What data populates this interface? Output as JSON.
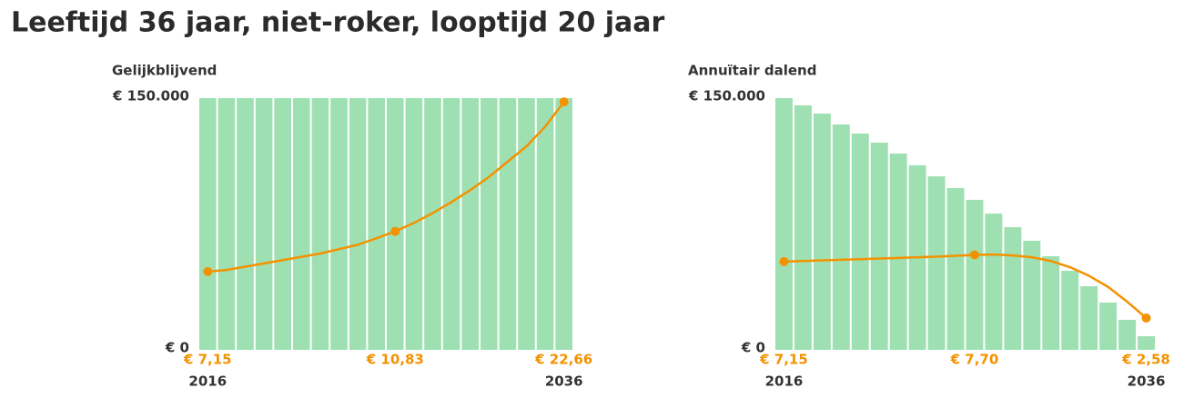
{
  "title": "Leeftijd 36 jaar, niet-roker, looptijd 20 jaar",
  "chart_data": [
    {
      "type": "bar",
      "subtitle": "Gelijkblijvend",
      "categories": [
        "2016",
        null,
        null,
        null,
        null,
        null,
        null,
        null,
        null,
        null,
        null,
        null,
        null,
        null,
        null,
        null,
        null,
        null,
        null,
        "2036"
      ],
      "series": [
        {
          "color": "#9fe0b2",
          "values": [
            150000,
            150000,
            150000,
            150000,
            150000,
            150000,
            150000,
            150000,
            150000,
            150000,
            150000,
            150000,
            150000,
            150000,
            150000,
            150000,
            150000,
            150000,
            150000,
            150000
          ]
        },
        {
          "type": "line",
          "axis": "y2",
          "color": "#f39200",
          "values": [
            7.15,
            7.3,
            7.6,
            7.9,
            8.2,
            8.5,
            8.8,
            9.2,
            9.6,
            10.2,
            10.83,
            11.6,
            12.5,
            13.5,
            14.6,
            15.8,
            17.2,
            18.6,
            20.4,
            22.66
          ],
          "value_labels": [
            "€ 7,15",
            null,
            null,
            null,
            null,
            null,
            null,
            null,
            null,
            null,
            "€ 10,83",
            null,
            null,
            null,
            null,
            null,
            null,
            null,
            null,
            "€ 22,66"
          ]
        }
      ],
      "ylim": [
        0,
        150000
      ],
      "yticks": [
        {
          "value": 0,
          "label": "€ 0"
        },
        {
          "value": 150000,
          "label": "€ 150.000"
        }
      ],
      "y2lim": [
        0,
        23
      ],
      "grid": false
    },
    {
      "type": "bar",
      "subtitle": "Annuïtair dalend",
      "categories": [
        "2016",
        null,
        null,
        null,
        null,
        null,
        null,
        null,
        null,
        null,
        null,
        null,
        null,
        null,
        null,
        null,
        null,
        null,
        null,
        "2036"
      ],
      "series": [
        {
          "color": "#9fe0b2",
          "values": [
            150000,
            145700,
            140800,
            134300,
            128900,
            123500,
            117000,
            110000,
            103400,
            96400,
            89400,
            81200,
            73100,
            65000,
            55800,
            47100,
            37900,
            28200,
            17900,
            8100
          ]
        },
        {
          "type": "line",
          "axis": "y2",
          "color": "#f39200",
          "values": [
            7.15,
            7.2,
            7.25,
            7.3,
            7.35,
            7.4,
            7.45,
            7.5,
            7.55,
            7.62,
            7.7,
            7.72,
            7.65,
            7.5,
            7.2,
            6.7,
            6.0,
            5.1,
            3.9,
            2.58
          ],
          "value_labels": [
            "€ 7,15",
            null,
            null,
            null,
            null,
            null,
            null,
            null,
            null,
            null,
            "€ 7,70",
            null,
            null,
            null,
            null,
            null,
            null,
            null,
            null,
            "€ 2,58"
          ]
        }
      ],
      "ylim": [
        0,
        150000
      ],
      "yticks": [
        {
          "value": 0,
          "label": "€ 0"
        },
        {
          "value": 150000,
          "label": "€ 150.000"
        }
      ],
      "y2lim": [
        0,
        20.4
      ],
      "grid": false
    }
  ]
}
